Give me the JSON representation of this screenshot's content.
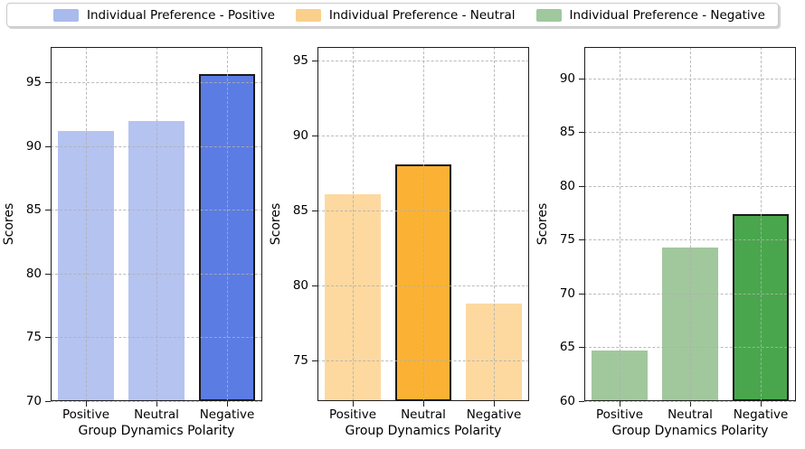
{
  "legend": {
    "entries": [
      {
        "label": "Individual Preference - Positive",
        "color": "#A9BAEC"
      },
      {
        "label": "Individual Preference - Neutral",
        "color": "#FBCF8C"
      },
      {
        "label": "Individual Preference - Negative",
        "color": "#9FC89D"
      }
    ]
  },
  "chart_data": [
    {
      "type": "bar",
      "series_name": "Individual Preference - Positive",
      "categories": [
        "Positive",
        "Neutral",
        "Negative"
      ],
      "values": [
        91.2,
        92.0,
        95.7
      ],
      "xlabel": "Group Dynamics Polarity",
      "ylabel": "Scores",
      "ylim": [
        70,
        97.8
      ],
      "yticks": [
        70,
        75,
        80,
        85,
        90,
        95
      ],
      "grid": true,
      "legend_position": "top",
      "bar_color": "#B5C3F1",
      "highlight_index": 2,
      "highlight_color": "#5B7CE3",
      "edge_color": "#1A1A1A"
    },
    {
      "type": "bar",
      "series_name": "Individual Preference - Neutral",
      "categories": [
        "Positive",
        "Neutral",
        "Negative"
      ],
      "values": [
        86.1,
        88.1,
        78.8
      ],
      "xlabel": "Group Dynamics Polarity",
      "ylabel": "Scores",
      "ylim": [
        72.3,
        95.9
      ],
      "yticks": [
        75,
        80,
        85,
        90,
        95
      ],
      "grid": true,
      "legend_position": "top",
      "bar_color": "#FDD9A0",
      "highlight_index": 1,
      "highlight_color": "#FBB234",
      "edge_color": "#1A1A1A"
    },
    {
      "type": "bar",
      "series_name": "Individual Preference - Negative",
      "categories": [
        "Positive",
        "Neutral",
        "Negative"
      ],
      "values": [
        64.7,
        74.3,
        77.4
      ],
      "xlabel": "Group Dynamics Polarity",
      "ylabel": "Scores",
      "ylim": [
        60,
        92.9
      ],
      "yticks": [
        60,
        65,
        70,
        75,
        80,
        85,
        90
      ],
      "grid": true,
      "legend_position": "top",
      "bar_color": "#A1C89C",
      "highlight_index": 2,
      "highlight_color": "#4AA64D",
      "edge_color": "#1A1A1A"
    }
  ]
}
